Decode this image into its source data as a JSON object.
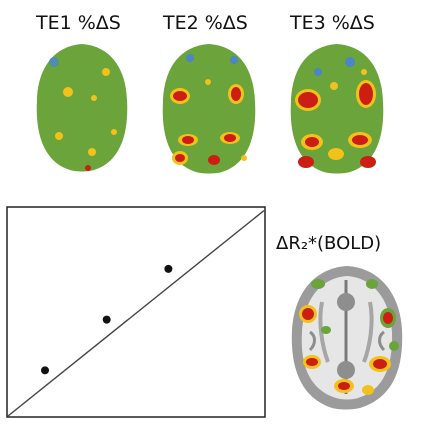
{
  "labels": {
    "te1": "TE1 %ΔS",
    "te2": "TE2 %ΔS",
    "te3": "TE3 %ΔS",
    "bold": "ΔR₂*(BOLD)"
  },
  "colors": {
    "brain_base": "#6aa43a",
    "hot": "#cc1e12",
    "warm": "#f2c21a",
    "cool": "#4a86c8",
    "gray_matter": "#9b9b9b",
    "white_matter": "#e6e6e6"
  },
  "chart_data": {
    "type": "line",
    "points": [
      {
        "x": 1,
        "y": 1
      },
      {
        "x": 2,
        "y": 2
      },
      {
        "x": 3,
        "y": 3
      }
    ],
    "fit_line": true,
    "grid": false,
    "axis_ticks": false
  }
}
